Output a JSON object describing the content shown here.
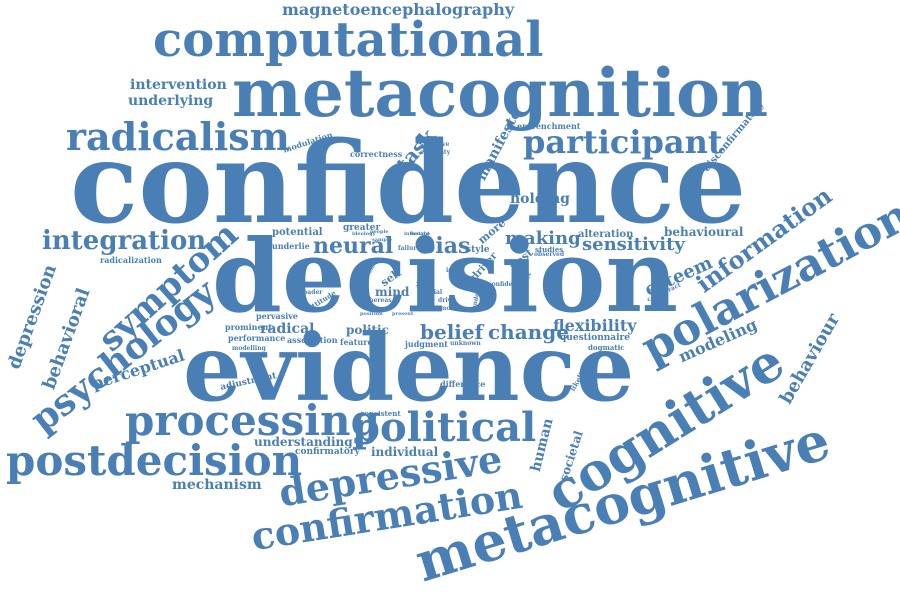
{
  "word_cloud": {
    "color": "#4a7fb5",
    "background": "#ffffff",
    "words": [
      "confidence",
      "decision",
      "evidence",
      "metacognition",
      "computational",
      "metacognitive",
      "cognitive",
      "polarization",
      "processing",
      "postdecision",
      "political",
      "depressive",
      "confirmation",
      "psychology",
      "symptom",
      "radicalism",
      "participant",
      "integration",
      "information",
      "magnetoencephalography",
      "neural",
      "bias",
      "making",
      "sensitivity",
      "belief",
      "change",
      "flexibility",
      "esteem",
      "modeling",
      "behaviour",
      "behavioural",
      "depression",
      "behavioral",
      "perceptual",
      "mechanism",
      "intervention",
      "underlying",
      "task",
      "manifesto",
      "holding",
      "human",
      "societal",
      "individual",
      "understanding",
      "confirmatory",
      "radical",
      "politic",
      "mind",
      "self",
      "potential",
      "greater",
      "underlie",
      "pervasive",
      "prominent",
      "performance",
      "association",
      "feature",
      "judgment",
      "questionnaire",
      "dogmatic",
      "adjustment",
      "difference",
      "consistent",
      "likelihood",
      "alteration",
      "entrenchment",
      "disconfirmatory",
      "modulation",
      "correctness",
      "selective",
      "certainty",
      "radicalization",
      "style",
      "more",
      "post",
      "studies",
      "driver",
      "failure",
      "insight",
      "broader",
      "attitude",
      "whereas",
      "initial",
      "drive",
      "model",
      "unknown",
      "counteract",
      "issue",
      "ability",
      "shape",
      "choice",
      "people",
      "incorrect",
      "tendency",
      "observed",
      "confident",
      "sample",
      "modelling",
      "influence",
      "position",
      "present",
      "ideology"
    ]
  }
}
